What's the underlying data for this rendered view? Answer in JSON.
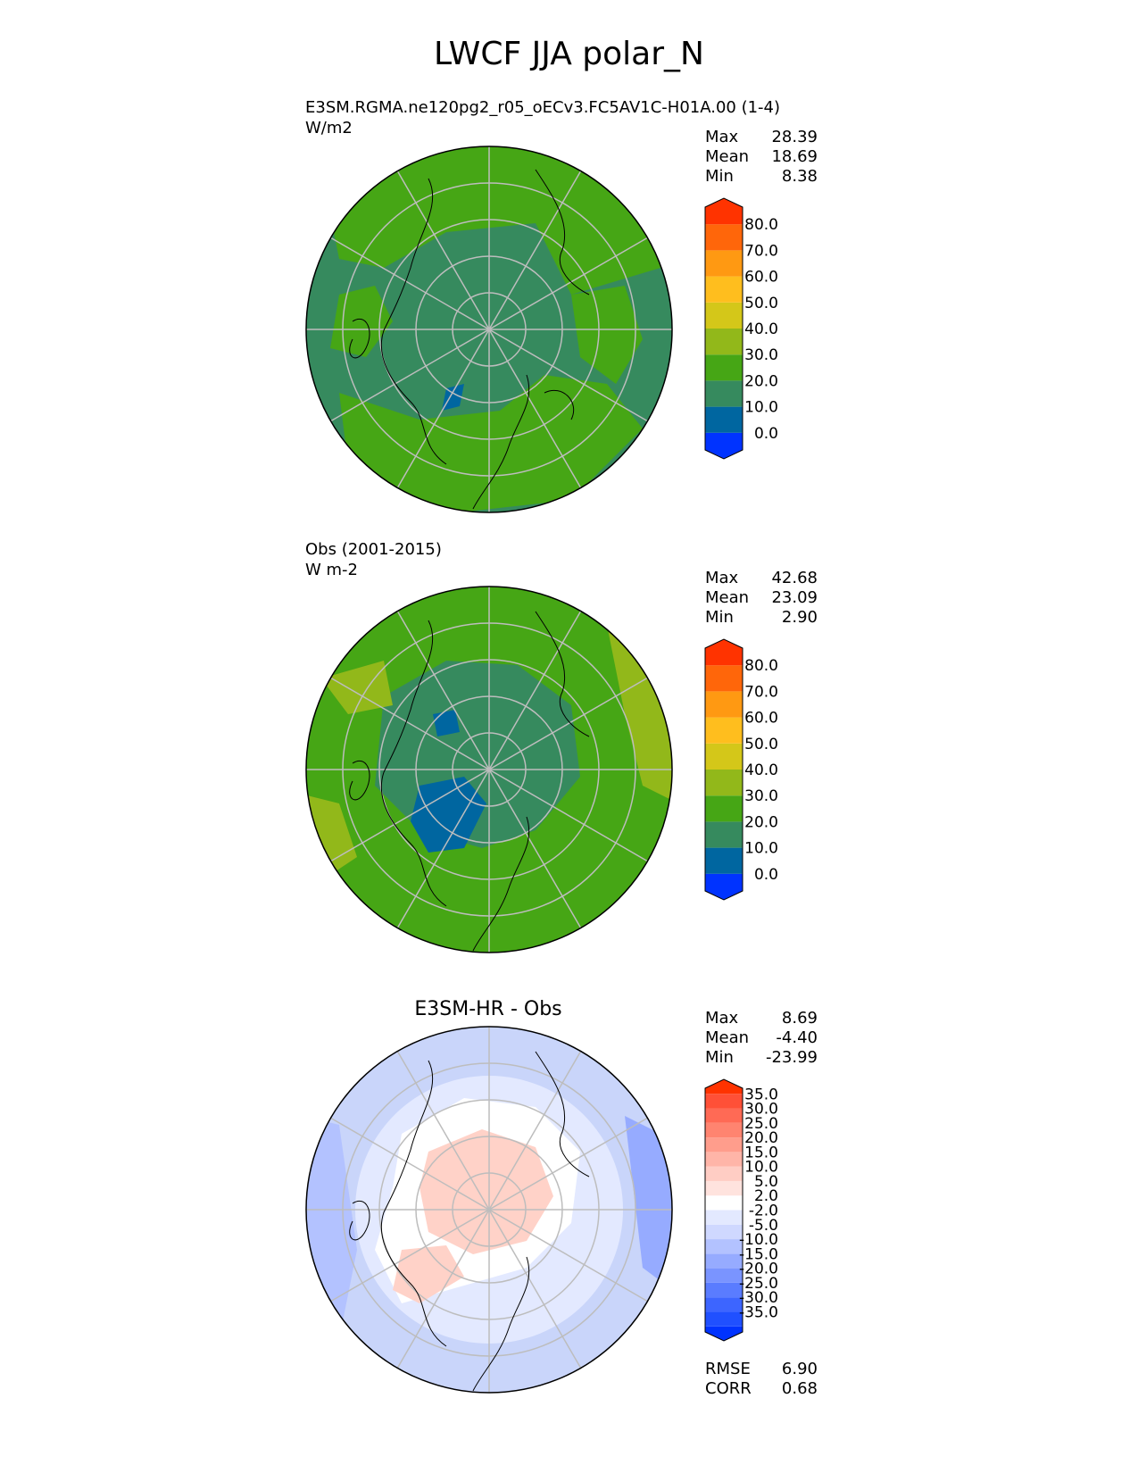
{
  "figure_title": "LWCF JJA polar_N",
  "panels": [
    {
      "id": "test",
      "title_line1": "E3SM.RGMA.ne120pg2_r05_oECv3.FC5AV1C-H01A.00 (1-4)",
      "title_line2": "W/m2",
      "stats": [
        {
          "label": "Max",
          "value": "28.39"
        },
        {
          "label": "Mean",
          "value": "18.69"
        },
        {
          "label": "Min",
          "value": "8.38"
        }
      ],
      "colorbar": {
        "colors": [
          "#0033ff",
          "#0066a0",
          "#368a5e",
          "#46a615",
          "#92b81a",
          "#d4c719",
          "#ffbe1e",
          "#ff9912",
          "#ff660a",
          "#ff3300"
        ],
        "ticks": [
          "80.0",
          "70.0",
          "60.0",
          "50.0",
          "40.0",
          "30.0",
          "20.0",
          "10.0",
          "0.0"
        ]
      },
      "background_color": "#368a5e",
      "secondary_color": "#46a615"
    },
    {
      "id": "ref",
      "title_line1": "Obs (2001-2015)",
      "title_line2": "W m-2",
      "stats": [
        {
          "label": "Max",
          "value": "42.68"
        },
        {
          "label": "Mean",
          "value": "23.09"
        },
        {
          "label": "Min",
          "value": "2.90"
        }
      ],
      "colorbar": {
        "colors": [
          "#0033ff",
          "#0066a0",
          "#368a5e",
          "#46a615",
          "#92b81a",
          "#d4c719",
          "#ffbe1e",
          "#ff9912",
          "#ff660a",
          "#ff3300"
        ],
        "ticks": [
          "80.0",
          "70.0",
          "60.0",
          "50.0",
          "40.0",
          "30.0",
          "20.0",
          "10.0",
          "0.0"
        ]
      },
      "background_color": "#46a615",
      "secondary_color": "#368a5e"
    },
    {
      "id": "diff",
      "title": "E3SM-HR - Obs",
      "stats": [
        {
          "label": "Max",
          "value": "8.69"
        },
        {
          "label": "Mean",
          "value": "-4.40"
        },
        {
          "label": "Min",
          "value": "-23.99"
        }
      ],
      "colorbar": {
        "colors": [
          "#0033ff",
          "#2050ff",
          "#3d65ff",
          "#5a7cff",
          "#7a94ff",
          "#96abff",
          "#b3c2ff",
          "#cfd8ff",
          "#e3e9ff",
          "#ffffff",
          "#ffe3de",
          "#ffcdc4",
          "#ffb5a8",
          "#ff9d8c",
          "#ff8470",
          "#ff6a55",
          "#ff5037",
          "#ff3300"
        ],
        "ticks": [
          "35.0",
          "30.0",
          "25.0",
          "20.0",
          "15.0",
          "10.0",
          "5.0",
          "2.0",
          "-2.0",
          "-5.0",
          "-10.0",
          "-15.0",
          "-20.0",
          "-25.0",
          "-30.0",
          "-35.0"
        ]
      },
      "background_color": "#c9d5fa",
      "secondary_color": "#ffd2c8",
      "metrics": [
        {
          "label": "RMSE",
          "value": "6.90"
        },
        {
          "label": "CORR",
          "value": "0.68"
        }
      ]
    }
  ]
}
